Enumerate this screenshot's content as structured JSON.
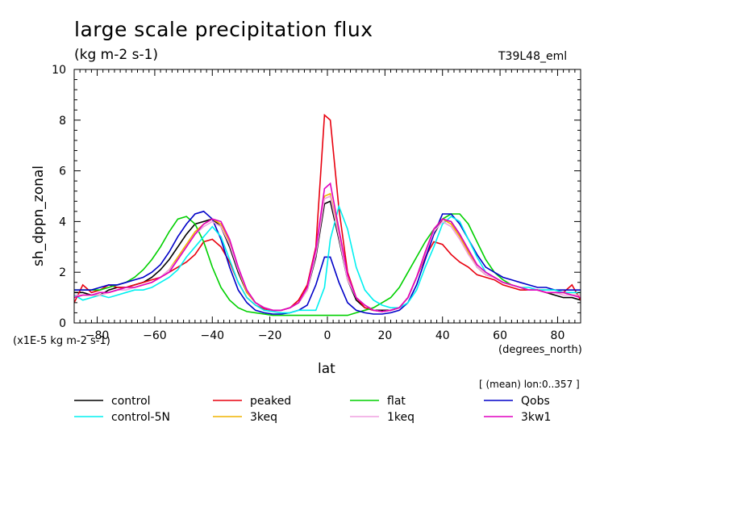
{
  "header": {
    "title": "large scale precipitation flux",
    "units": "(kg m-2 s-1)",
    "run_id": "T39L48_eml"
  },
  "footer": {
    "averaging": "[ (mean) lon:0..357 ]"
  },
  "chart_data": {
    "type": "line",
    "title": "large scale precipitation flux",
    "xlabel": "lat",
    "x_units": "(degrees_north)",
    "ylabel": "sh_dppn_zonal",
    "y_scale_note": "(x1E-5 kg m-2 s-1)",
    "xlim": [
      -88,
      88
    ],
    "ylim": [
      0,
      10
    ],
    "xticks": [
      -80,
      -60,
      -40,
      -20,
      0,
      20,
      40,
      60,
      80
    ],
    "yticks": [
      0,
      2,
      4,
      6,
      8,
      10
    ],
    "x": [
      -88,
      -85,
      -82,
      -79,
      -76,
      -73,
      -70,
      -67,
      -64,
      -61,
      -58,
      -55,
      -52,
      -49,
      -46,
      -43,
      -40,
      -37,
      -34,
      -31,
      -28,
      -25,
      -22,
      -19,
      -16,
      -13,
      -10,
      -7,
      -4,
      -1,
      1,
      4,
      7,
      10,
      13,
      16,
      19,
      22,
      25,
      28,
      31,
      34,
      37,
      40,
      43,
      46,
      49,
      52,
      55,
      58,
      61,
      64,
      67,
      70,
      73,
      76,
      79,
      82,
      85,
      88
    ],
    "series": [
      {
        "name": "control",
        "color": "#000000",
        "values": [
          1.2,
          1.2,
          1.1,
          1.1,
          1.3,
          1.4,
          1.4,
          1.5,
          1.6,
          1.8,
          2.1,
          2.5,
          3.0,
          3.5,
          3.9,
          4.0,
          4.1,
          3.8,
          3.0,
          2.0,
          1.2,
          0.8,
          0.6,
          0.5,
          0.5,
          0.6,
          0.8,
          1.3,
          2.6,
          4.7,
          4.8,
          3.3,
          1.7,
          0.9,
          0.6,
          0.5,
          0.5,
          0.5,
          0.6,
          1.0,
          1.8,
          2.7,
          3.5,
          4.1,
          4.0,
          3.5,
          2.8,
          2.2,
          1.9,
          1.8,
          1.6,
          1.5,
          1.4,
          1.3,
          1.3,
          1.2,
          1.1,
          1.0,
          1.0,
          0.9
        ]
      },
      {
        "name": "peaked",
        "color": "#e8000e",
        "values": [
          0.8,
          1.5,
          1.2,
          1.3,
          1.5,
          1.4,
          1.4,
          1.5,
          1.6,
          1.7,
          1.8,
          2.0,
          2.2,
          2.4,
          2.7,
          3.2,
          3.3,
          3.0,
          2.4,
          1.6,
          1.0,
          0.7,
          0.55,
          0.5,
          0.5,
          0.6,
          0.9,
          1.5,
          3.0,
          8.2,
          8.0,
          4.5,
          2.0,
          1.0,
          0.6,
          0.5,
          0.45,
          0.5,
          0.6,
          1.0,
          1.8,
          2.6,
          3.2,
          3.1,
          2.7,
          2.4,
          2.2,
          1.9,
          1.8,
          1.7,
          1.5,
          1.4,
          1.3,
          1.3,
          1.3,
          1.2,
          1.2,
          1.2,
          1.5,
          0.9
        ]
      },
      {
        "name": "flat",
        "color": "#00d000",
        "values": [
          1.3,
          1.3,
          1.3,
          1.3,
          1.4,
          1.5,
          1.6,
          1.8,
          2.1,
          2.5,
          3.0,
          3.6,
          4.1,
          4.2,
          3.9,
          3.2,
          2.2,
          1.4,
          0.9,
          0.6,
          0.45,
          0.4,
          0.35,
          0.3,
          0.3,
          0.3,
          0.3,
          0.3,
          0.3,
          0.3,
          0.3,
          0.3,
          0.3,
          0.4,
          0.5,
          0.6,
          0.8,
          1.0,
          1.4,
          2.0,
          2.6,
          3.2,
          3.7,
          4.1,
          4.3,
          4.3,
          3.9,
          3.2,
          2.5,
          2.0,
          1.7,
          1.5,
          1.4,
          1.3,
          1.3,
          1.3,
          1.3,
          1.2,
          1.2,
          1.2
        ]
      },
      {
        "name": "Qobs",
        "color": "#0000c8",
        "values": [
          1.3,
          1.3,
          1.3,
          1.4,
          1.5,
          1.5,
          1.6,
          1.7,
          1.8,
          2.0,
          2.3,
          2.8,
          3.4,
          3.9,
          4.3,
          4.4,
          4.1,
          3.3,
          2.2,
          1.3,
          0.8,
          0.5,
          0.4,
          0.35,
          0.35,
          0.4,
          0.5,
          0.7,
          1.5,
          2.6,
          2.6,
          1.6,
          0.8,
          0.5,
          0.4,
          0.35,
          0.35,
          0.4,
          0.5,
          0.8,
          1.5,
          2.5,
          3.5,
          4.3,
          4.3,
          3.9,
          3.3,
          2.7,
          2.2,
          2.0,
          1.8,
          1.7,
          1.6,
          1.5,
          1.4,
          1.4,
          1.3,
          1.3,
          1.3,
          1.3
        ]
      },
      {
        "name": "control-5N",
        "color": "#00f0f0",
        "values": [
          1.1,
          0.9,
          1.0,
          1.1,
          1.0,
          1.1,
          1.2,
          1.3,
          1.3,
          1.4,
          1.6,
          1.8,
          2.1,
          2.6,
          3.0,
          3.4,
          3.8,
          3.4,
          2.5,
          1.6,
          1.0,
          0.7,
          0.5,
          0.45,
          0.4,
          0.4,
          0.5,
          0.5,
          0.5,
          1.4,
          3.3,
          4.6,
          3.7,
          2.2,
          1.3,
          0.9,
          0.7,
          0.6,
          0.6,
          0.8,
          1.3,
          2.2,
          3.0,
          3.9,
          4.2,
          4.0,
          3.3,
          2.6,
          2.0,
          1.8,
          1.6,
          1.5,
          1.4,
          1.4,
          1.3,
          1.3,
          1.3,
          1.2,
          1.2,
          1.2
        ]
      },
      {
        "name": "3keq",
        "color": "#f0b400",
        "values": [
          1.0,
          1.1,
          1.1,
          1.1,
          1.2,
          1.3,
          1.4,
          1.4,
          1.5,
          1.6,
          1.8,
          2.1,
          2.6,
          3.1,
          3.6,
          3.9,
          4.1,
          3.9,
          3.2,
          2.1,
          1.2,
          0.8,
          0.6,
          0.5,
          0.5,
          0.6,
          0.8,
          1.3,
          2.8,
          5.0,
          5.1,
          3.5,
          1.8,
          1.0,
          0.7,
          0.5,
          0.45,
          0.5,
          0.6,
          1.0,
          1.8,
          2.8,
          3.7,
          4.1,
          3.9,
          3.4,
          2.8,
          2.2,
          1.9,
          1.8,
          1.6,
          1.5,
          1.4,
          1.3,
          1.3,
          1.2,
          1.2,
          1.2,
          1.1,
          1.1
        ]
      },
      {
        "name": "1keq",
        "color": "#f0a0e0",
        "values": [
          1.1,
          1.1,
          1.1,
          1.1,
          1.2,
          1.3,
          1.3,
          1.4,
          1.5,
          1.6,
          1.8,
          2.1,
          2.5,
          3.0,
          3.5,
          3.8,
          4.0,
          3.8,
          3.1,
          2.1,
          1.3,
          0.8,
          0.6,
          0.5,
          0.5,
          0.6,
          0.8,
          1.3,
          2.7,
          4.9,
          5.0,
          3.4,
          1.7,
          1.0,
          0.7,
          0.5,
          0.45,
          0.5,
          0.6,
          1.0,
          1.8,
          2.7,
          3.6,
          4.0,
          3.8,
          3.3,
          2.7,
          2.2,
          1.9,
          1.8,
          1.6,
          1.5,
          1.4,
          1.3,
          1.3,
          1.2,
          1.2,
          1.1,
          1.1,
          1.1
        ]
      },
      {
        "name": "3kw1",
        "color": "#e000c0",
        "values": [
          1.0,
          1.1,
          1.1,
          1.2,
          1.2,
          1.3,
          1.4,
          1.4,
          1.5,
          1.6,
          1.8,
          2.0,
          2.5,
          3.0,
          3.5,
          3.9,
          4.1,
          4.0,
          3.3,
          2.2,
          1.3,
          0.8,
          0.6,
          0.5,
          0.5,
          0.6,
          0.8,
          1.4,
          2.9,
          5.3,
          5.5,
          3.7,
          1.9,
          1.0,
          0.7,
          0.5,
          0.45,
          0.5,
          0.6,
          1.0,
          1.8,
          2.8,
          3.7,
          4.1,
          4.0,
          3.5,
          2.9,
          2.3,
          2.0,
          1.8,
          1.6,
          1.5,
          1.4,
          1.3,
          1.3,
          1.2,
          1.2,
          1.2,
          1.1,
          1.0
        ]
      }
    ]
  }
}
